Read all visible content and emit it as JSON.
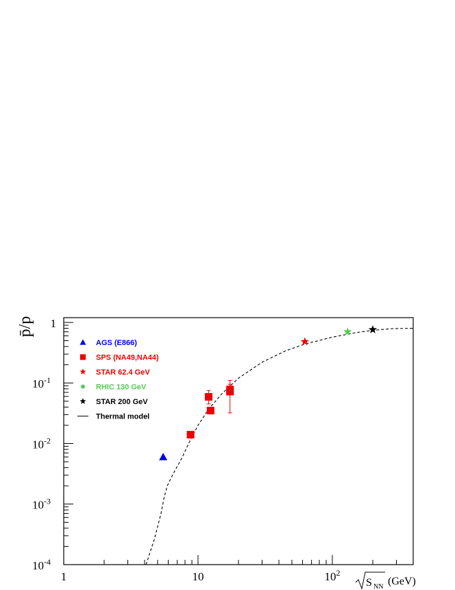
{
  "chart_data": {
    "type": "scatter",
    "ylabel": "p̄/p",
    "xlabel": {
      "sqrt_term": "S",
      "sqrt_sub": "NN",
      "unit": "(GeV)"
    },
    "xscale": "log",
    "yscale": "log",
    "xlim": [
      1,
      400
    ],
    "ylim": [
      0.0001,
      1.2
    ],
    "grid": false,
    "legend_position": "top-left",
    "x_ticks": [
      {
        "value": 1,
        "label": "1"
      },
      {
        "value": 10,
        "label": "10"
      },
      {
        "value": 100,
        "label": "10",
        "sup": "2"
      }
    ],
    "y_ticks": [
      {
        "value": 0.0001,
        "label": "10",
        "sup": "-4"
      },
      {
        "value": 0.001,
        "label": "10",
        "sup": "-3"
      },
      {
        "value": 0.01,
        "label": "10",
        "sup": "-2"
      },
      {
        "value": 0.1,
        "label": "10",
        "sup": "-1"
      },
      {
        "value": 1,
        "label": "1"
      }
    ],
    "series": [
      {
        "name": "AGS (E866)",
        "marker": "triangle",
        "color": "#0000ee",
        "points": [
          {
            "x": 5.5,
            "y": 0.006
          }
        ]
      },
      {
        "name": "SPS (NA49,NA44)",
        "marker": "square",
        "color": "#ee0000",
        "points": [
          {
            "x": 8.8,
            "y": 0.014,
            "ylo": 0.0135,
            "yhi": 0.0146
          },
          {
            "x": 12.0,
            "y": 0.059,
            "ylo": 0.045,
            "yhi": 0.075
          },
          {
            "x": 12.4,
            "y": 0.035,
            "ylo": 0.031,
            "yhi": 0.039
          },
          {
            "x": 17.3,
            "y": 0.078,
            "ylo": 0.065,
            "yhi": 0.095
          },
          {
            "x": 17.3,
            "y": 0.072,
            "ylo": 0.032,
            "yhi": 0.11
          }
        ]
      },
      {
        "name": "STAR 62.4 GeV",
        "marker": "star",
        "color": "#ee0000",
        "points": [
          {
            "x": 62.4,
            "y": 0.48
          }
        ]
      },
      {
        "name": "RHIC 130 GeV",
        "marker": "star",
        "legend_marker": "circle",
        "color": "#55cc55",
        "points": [
          {
            "x": 130,
            "y": 0.7
          }
        ]
      },
      {
        "name": "STAR 200 GeV",
        "marker": "star",
        "color": "#000000",
        "points": [
          {
            "x": 200,
            "y": 0.76
          }
        ]
      },
      {
        "name": "Thermal model",
        "marker": "line-dashed",
        "legend_marker": "line",
        "color": "#000000",
        "points": [
          {
            "x": 4.1,
            "y": 0.0001
          },
          {
            "x": 4.7,
            "y": 0.00025
          },
          {
            "x": 5.3,
            "y": 0.0007
          },
          {
            "x": 5.6,
            "y": 0.0013
          },
          {
            "x": 5.9,
            "y": 0.002
          },
          {
            "x": 6.5,
            "y": 0.0031
          },
          {
            "x": 7.5,
            "y": 0.0055
          },
          {
            "x": 8.7,
            "y": 0.011
          },
          {
            "x": 10,
            "y": 0.02
          },
          {
            "x": 12,
            "y": 0.037
          },
          {
            "x": 15,
            "y": 0.066
          },
          {
            "x": 20,
            "y": 0.12
          },
          {
            "x": 30,
            "y": 0.22
          },
          {
            "x": 45,
            "y": 0.34
          },
          {
            "x": 62.4,
            "y": 0.44
          },
          {
            "x": 100,
            "y": 0.57
          },
          {
            "x": 150,
            "y": 0.68
          },
          {
            "x": 200,
            "y": 0.74
          },
          {
            "x": 280,
            "y": 0.79
          },
          {
            "x": 400,
            "y": 0.8
          }
        ]
      }
    ]
  }
}
